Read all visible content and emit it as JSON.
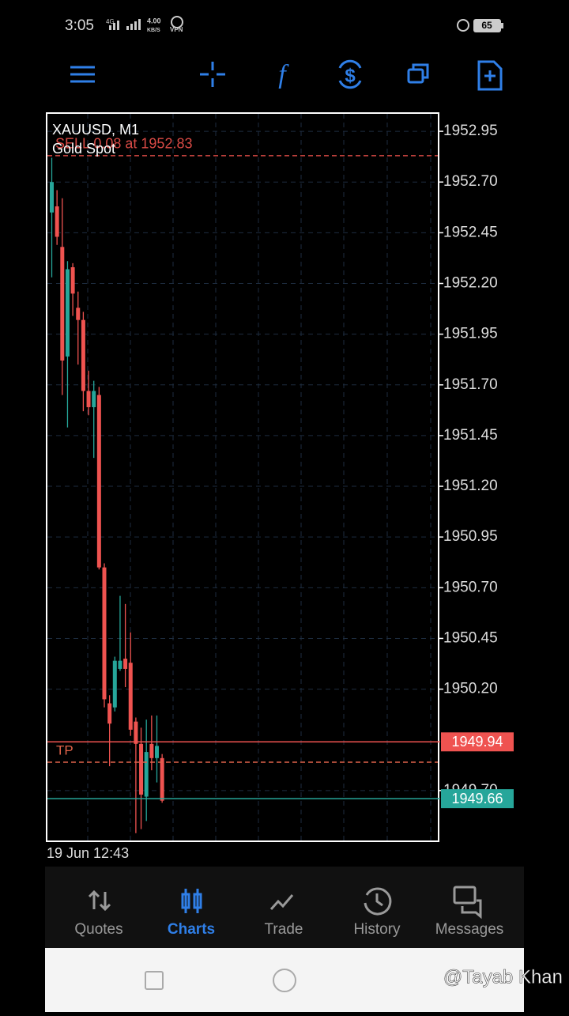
{
  "status_bar": {
    "time": "3:05",
    "network": "4G",
    "speed": "4.00",
    "speed_unit": "KB/S",
    "vpn": "VPN",
    "battery": "65"
  },
  "chart_data": {
    "type": "candlestick",
    "title": "XAUUSD, M1",
    "subtitle": "Gold Spot",
    "x_label": "19 Jun 12:43",
    "ylim": [
      1949.45,
      1953.04
    ],
    "yticks": [
      1952.95,
      {
        "value": 1952.7,
        "label": "1952.70"
      },
      1952.45,
      {
        "value": 1952.2,
        "label": "1952.20"
      },
      1951.95,
      {
        "value": 1951.7,
        "label": "1951.70"
      },
      1951.45,
      {
        "value": 1951.2,
        "label": "1951.20"
      },
      1950.95,
      {
        "value": 1950.7,
        "label": "1950.70"
      },
      1950.45,
      {
        "value": 1950.2,
        "label": "1950.20"
      },
      {
        "value": 1949.7,
        "label": "1949.70"
      }
    ],
    "grid": true,
    "up_color": "#26a69a",
    "down_color": "#ef5350",
    "open": [
      1952.55,
      1952.58,
      1952.38,
      1951.84,
      1952.28,
      1952.08,
      1952.02,
      1951.67,
      1951.59,
      1951.65,
      1950.8,
      1950.13,
      1950.11,
      1950.3,
      1950.35,
      1950.33,
      1950.04,
      1949.93,
      1949.67,
      1949.93,
      1949.86,
      1949.86
    ],
    "high": [
      1952.82,
      1952.66,
      1952.62,
      1952.31,
      1952.3,
      1952.16,
      1952.06,
      1951.77,
      1951.72,
      1951.69,
      1950.82,
      1950.17,
      1950.36,
      1950.66,
      1950.62,
      1950.48,
      1950.06,
      1950.01,
      1950.05,
      1950.07,
      1950.07,
      1949.88
    ],
    "low": [
      1952.23,
      1952.39,
      1951.65,
      1951.49,
      1952.04,
      1951.8,
      1951.57,
      1951.55,
      1951.34,
      1950.79,
      1950.11,
      1949.82,
      1950.09,
      1950.29,
      1950.21,
      1949.97,
      1949.49,
      1949.51,
      1949.55,
      1949.8,
      1949.74,
      1949.64
    ],
    "close": [
      1952.7,
      1952.43,
      1951.82,
      1952.27,
      1952.15,
      1952.02,
      1951.67,
      1951.59,
      1951.67,
      1950.8,
      1950.15,
      1950.03,
      1950.34,
      1950.34,
      1950.3,
      1950.0,
      1949.93,
      1949.68,
      1949.89,
      1949.86,
      1949.92,
      1949.65
    ],
    "order": {
      "label": "SELL 0.08 at 1952.83",
      "price": 1952.83,
      "color": "#d84a45"
    },
    "take_profit": {
      "label": "TP",
      "price": 1949.84,
      "color": "#e0634a"
    },
    "bid": {
      "price": 1949.94,
      "color": "#ef5350"
    },
    "ask": {
      "price": 1949.66,
      "color": "#26a69a"
    }
  },
  "nav": {
    "items": [
      "Quotes",
      "Charts",
      "Trade",
      "History",
      "Messages"
    ],
    "active": 1
  },
  "watermark": "@Tayab Khan"
}
